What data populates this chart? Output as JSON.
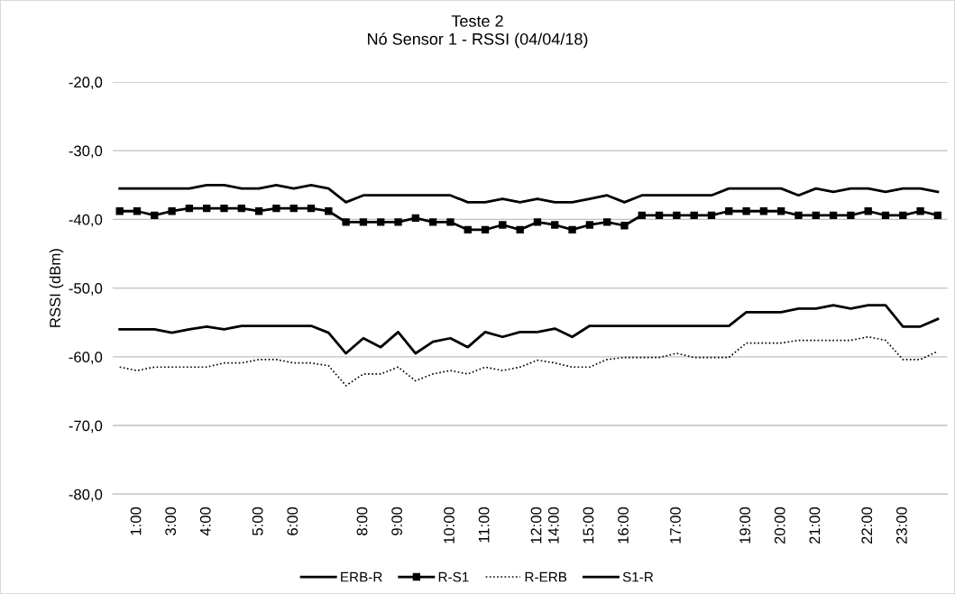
{
  "chart_data": {
    "type": "line",
    "title": "Teste 2",
    "subtitle": "Nó Sensor 1 - RSSI (04/04/18)",
    "ylabel": "RSSI (dBm)",
    "categories": [
      null,
      "1:00",
      null,
      "3:00",
      null,
      "4:00",
      null,
      null,
      "5:00",
      null,
      "6:00",
      null,
      null,
      null,
      "8:00",
      null,
      "9:00",
      null,
      null,
      "10:00",
      null,
      "11:00",
      null,
      null,
      "12:00",
      "14:00",
      null,
      "15:00",
      null,
      "16:00",
      null,
      null,
      "17:00",
      null,
      null,
      null,
      "19:00",
      null,
      "20:00",
      null,
      "21:00",
      null,
      null,
      "22:00",
      null,
      "23:00",
      null,
      null
    ],
    "series": [
      {
        "name": "ERB-R",
        "color": "#000000",
        "line_style": "solid",
        "marker": "none",
        "values": [
          -56.0,
          -56.0,
          -56.0,
          -56.5,
          -56.0,
          -55.6,
          -56.0,
          -55.5,
          -55.5,
          -55.5,
          -55.5,
          -55.5,
          -56.5,
          -59.5,
          -57.3,
          -58.6,
          -56.4,
          -59.5,
          -57.8,
          -57.3,
          -58.6,
          -56.4,
          -57.1,
          -56.4,
          -56.4,
          -55.9,
          -57.1,
          -55.5,
          -55.5,
          -55.5,
          -55.5,
          -55.5,
          -55.5,
          -55.5,
          -55.5,
          -55.5,
          -53.5,
          -53.5,
          -53.5,
          -53.0,
          -53.0,
          -52.5,
          -53.0,
          -52.5,
          -52.5,
          -55.6,
          -55.6,
          -54.5
        ]
      },
      {
        "name": "R-S1",
        "color": "#000000",
        "line_style": "solid",
        "marker": "square",
        "values": [
          -38.8,
          -38.8,
          -39.4,
          -38.8,
          -38.4,
          -38.4,
          -38.4,
          -38.4,
          -38.8,
          -38.4,
          -38.4,
          -38.4,
          -38.8,
          -40.4,
          -40.4,
          -40.4,
          -40.4,
          -39.8,
          -40.4,
          -40.4,
          -41.5,
          -41.5,
          -40.8,
          -41.5,
          -40.4,
          -40.8,
          -41.5,
          -40.8,
          -40.4,
          -40.9,
          -39.4,
          -39.4,
          -39.4,
          -39.4,
          -39.4,
          -38.8,
          -38.8,
          -38.8,
          -38.8,
          -39.4,
          -39.4,
          -39.4,
          -39.4,
          -38.8,
          -39.4,
          -39.4,
          -38.8,
          -39.4
        ]
      },
      {
        "name": "R-ERB",
        "color": "#000000",
        "line_style": "dotted",
        "marker": "none",
        "values": [
          -61.5,
          -62.0,
          -61.5,
          -61.5,
          -61.5,
          -61.5,
          -60.9,
          -60.9,
          -60.4,
          -60.4,
          -60.9,
          -60.9,
          -61.3,
          -64.2,
          -62.5,
          -62.5,
          -61.5,
          -63.5,
          -62.5,
          -62.0,
          -62.5,
          -61.5,
          -62.0,
          -61.5,
          -60.5,
          -60.9,
          -61.5,
          -61.5,
          -60.4,
          -60.1,
          -60.1,
          -60.1,
          -59.5,
          -60.1,
          -60.1,
          -60.1,
          -58.0,
          -58.0,
          -58.0,
          -57.6,
          -57.6,
          -57.6,
          -57.6,
          -57.1,
          -57.6,
          -60.4,
          -60.4,
          -59.2
        ]
      },
      {
        "name": "S1-R",
        "color": "#000000",
        "line_style": "solid",
        "marker": "none",
        "values": [
          -35.5,
          -35.5,
          -35.5,
          -35.5,
          -35.5,
          -35.0,
          -35.0,
          -35.5,
          -35.5,
          -35.0,
          -35.5,
          -35.0,
          -35.5,
          -37.5,
          -36.5,
          -36.5,
          -36.5,
          -36.5,
          -36.5,
          -36.5,
          -37.5,
          -37.5,
          -37.0,
          -37.5,
          -37.0,
          -37.5,
          -37.5,
          -37.0,
          -36.5,
          -37.5,
          -36.5,
          -36.5,
          -36.5,
          -36.5,
          -36.5,
          -35.5,
          -35.5,
          -35.5,
          -35.5,
          -36.5,
          -35.5,
          -36.0,
          -35.5,
          -35.5,
          -36.0,
          -35.5,
          -35.5,
          -36.0
        ]
      }
    ],
    "ylim": [
      -80,
      -20
    ],
    "yticks": [
      {
        "value": -80,
        "label": "-80,0"
      },
      {
        "value": -70,
        "label": "-70,0"
      },
      {
        "value": -60,
        "label": "-60,0"
      },
      {
        "value": -50,
        "label": "-50,0"
      },
      {
        "value": -40,
        "label": "-40,0"
      },
      {
        "value": -30,
        "label": "-30,0"
      },
      {
        "value": -20,
        "label": "-20,0"
      }
    ],
    "grid": "y",
    "legend": "bottom"
  }
}
